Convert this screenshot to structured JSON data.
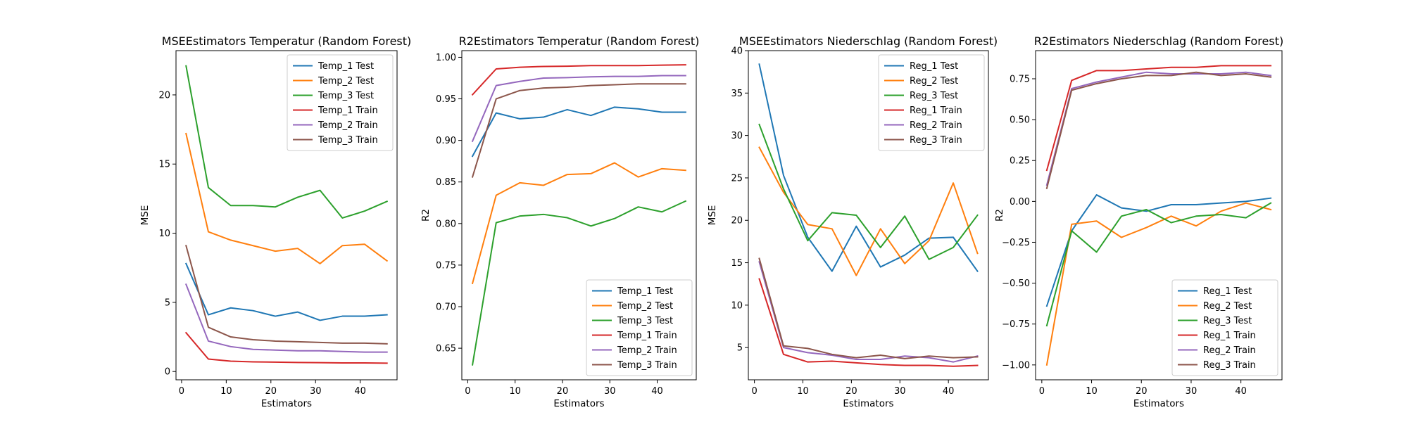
{
  "figure": {
    "background": "#ffffff"
  },
  "colors": {
    "C0": "#1f77b4",
    "C1": "#ff7f0e",
    "C2": "#2ca02c",
    "C3": "#d62728",
    "C4": "#9467bd",
    "C5": "#8c564b"
  },
  "chart_data": [
    {
      "type": "line",
      "title": "MSEEstimators Temperatur (Random Forest)",
      "xlabel": "Estimators",
      "ylabel": "MSE",
      "xlim": [
        -1.25,
        48.25
      ],
      "ylim": [
        -0.6,
        23.2
      ],
      "xticks": [
        0,
        10,
        20,
        30,
        40
      ],
      "yticks": [
        0,
        5,
        10,
        15,
        20
      ],
      "grid": false,
      "legend_loc": "upper right",
      "x": [
        1,
        6,
        11,
        16,
        21,
        26,
        31,
        36,
        41,
        46
      ],
      "series": [
        {
          "name": "Temp_1 Test",
          "color": "#1f77b4",
          "values": [
            7.8,
            4.1,
            4.6,
            4.4,
            4.0,
            4.3,
            3.7,
            4.0,
            4.0,
            4.1
          ]
        },
        {
          "name": "Temp_2 Test",
          "color": "#ff7f0e",
          "values": [
            17.2,
            10.1,
            9.5,
            9.1,
            8.7,
            8.9,
            7.8,
            9.1,
            9.2,
            8.0
          ]
        },
        {
          "name": "Temp_3 Test",
          "color": "#2ca02c",
          "values": [
            22.1,
            13.3,
            12.0,
            12.0,
            11.9,
            12.6,
            13.1,
            11.1,
            11.6,
            12.3
          ]
        },
        {
          "name": "Temp_1 Train",
          "color": "#d62728",
          "values": [
            2.8,
            0.9,
            0.75,
            0.7,
            0.68,
            0.65,
            0.64,
            0.62,
            0.62,
            0.6
          ]
        },
        {
          "name": "Temp_2 Train",
          "color": "#9467bd",
          "values": [
            6.3,
            2.2,
            1.8,
            1.6,
            1.55,
            1.5,
            1.5,
            1.45,
            1.4,
            1.4
          ]
        },
        {
          "name": "Temp_3 Train",
          "color": "#8c564b",
          "values": [
            9.1,
            3.2,
            2.5,
            2.3,
            2.2,
            2.15,
            2.1,
            2.05,
            2.05,
            2.0
          ]
        }
      ]
    },
    {
      "type": "line",
      "title": "R2Estimators Temperatur (Random Forest)",
      "xlabel": "Estimators",
      "ylabel": "R2",
      "xlim": [
        -1.25,
        48.25
      ],
      "ylim": [
        0.612,
        1.008
      ],
      "xticks": [
        0,
        10,
        20,
        30,
        40
      ],
      "yticks": [
        0.65,
        0.7,
        0.75,
        0.8,
        0.85,
        0.9,
        0.95,
        1.0
      ],
      "grid": false,
      "legend_loc": "lower right",
      "x": [
        1,
        6,
        11,
        16,
        21,
        26,
        31,
        36,
        41,
        46
      ],
      "series": [
        {
          "name": "Temp_1 Test",
          "color": "#1f77b4",
          "values": [
            0.881,
            0.933,
            0.926,
            0.928,
            0.937,
            0.93,
            0.94,
            0.938,
            0.934,
            0.934
          ]
        },
        {
          "name": "Temp_2 Test",
          "color": "#ff7f0e",
          "values": [
            0.728,
            0.834,
            0.849,
            0.846,
            0.859,
            0.86,
            0.873,
            0.856,
            0.866,
            0.864
          ]
        },
        {
          "name": "Temp_3 Test",
          "color": "#2ca02c",
          "values": [
            0.63,
            0.801,
            0.809,
            0.811,
            0.807,
            0.797,
            0.806,
            0.82,
            0.814,
            0.827
          ]
        },
        {
          "name": "Temp_1 Train",
          "color": "#d62728",
          "values": [
            0.955,
            0.986,
            0.988,
            0.989,
            0.9893,
            0.99,
            0.99,
            0.99,
            0.9905,
            0.991
          ]
        },
        {
          "name": "Temp_2 Train",
          "color": "#9467bd",
          "values": [
            0.899,
            0.966,
            0.971,
            0.975,
            0.9755,
            0.9765,
            0.977,
            0.977,
            0.978,
            0.978
          ]
        },
        {
          "name": "Temp_3 Train",
          "color": "#8c564b",
          "values": [
            0.856,
            0.95,
            0.96,
            0.963,
            0.964,
            0.966,
            0.967,
            0.968,
            0.968,
            0.968
          ]
        }
      ]
    },
    {
      "type": "line",
      "title": "MSEEstimators Niederschlag (Random Forest)",
      "xlabel": "Estimators",
      "ylabel": "MSE",
      "xlim": [
        -1.25,
        48.25
      ],
      "ylim": [
        1.2,
        40.0
      ],
      "xticks": [
        0,
        10,
        20,
        30,
        40
      ],
      "yticks": [
        5,
        10,
        15,
        20,
        25,
        30,
        35,
        40
      ],
      "grid": false,
      "legend_loc": "upper right",
      "x": [
        1,
        6,
        11,
        16,
        21,
        26,
        31,
        36,
        41,
        46
      ],
      "series": [
        {
          "name": "Reg_1 Test",
          "color": "#1f77b4",
          "values": [
            38.4,
            25.3,
            18.0,
            14.0,
            19.3,
            14.5,
            15.9,
            17.9,
            18.0,
            14.0
          ]
        },
        {
          "name": "Reg_2 Test",
          "color": "#ff7f0e",
          "values": [
            28.6,
            23.3,
            19.5,
            19.0,
            13.5,
            19.0,
            14.9,
            17.6,
            24.4,
            16.1
          ]
        },
        {
          "name": "Reg_3 Test",
          "color": "#2ca02c",
          "values": [
            31.3,
            23.7,
            17.6,
            20.9,
            20.6,
            16.8,
            20.5,
            15.4,
            16.8,
            20.6
          ]
        },
        {
          "name": "Reg_1 Train",
          "color": "#d62728",
          "values": [
            13.1,
            4.2,
            3.3,
            3.4,
            3.2,
            3.0,
            2.9,
            2.9,
            2.8,
            2.9
          ]
        },
        {
          "name": "Reg_2 Train",
          "color": "#9467bd",
          "values": [
            15.1,
            5.0,
            4.4,
            4.1,
            3.6,
            3.6,
            4.0,
            3.8,
            3.3,
            4.0
          ]
        },
        {
          "name": "Reg_3 Train",
          "color": "#8c564b",
          "values": [
            15.5,
            5.2,
            4.9,
            4.2,
            3.8,
            4.1,
            3.7,
            4.0,
            3.8,
            3.9
          ]
        }
      ]
    },
    {
      "type": "line",
      "title": "R2Estimators Niederschlag (Random Forest)",
      "xlabel": "Estimators",
      "ylabel": "R2",
      "xlim": [
        -1.25,
        48.25
      ],
      "ylim": [
        -1.091,
        0.922
      ],
      "xticks": [
        0,
        10,
        20,
        30,
        40
      ],
      "yticks": [
        -1.0,
        -0.75,
        -0.5,
        -0.25,
        0.0,
        0.25,
        0.5,
        0.75
      ],
      "ytick_labels": [
        "−1.00",
        "−0.75",
        "−0.50",
        "−0.25",
        "0.00",
        "0.25",
        "0.50",
        "0.75"
      ],
      "grid": false,
      "legend_loc": "lower right",
      "x": [
        1,
        6,
        11,
        16,
        21,
        26,
        31,
        36,
        41,
        46
      ],
      "series": [
        {
          "name": "Reg_1 Test",
          "color": "#1f77b4",
          "values": [
            -0.64,
            -0.18,
            0.04,
            -0.04,
            -0.06,
            -0.02,
            -0.02,
            -0.01,
            0.0,
            0.02
          ]
        },
        {
          "name": "Reg_2 Test",
          "color": "#ff7f0e",
          "values": [
            -1.0,
            -0.14,
            -0.12,
            -0.22,
            -0.16,
            -0.09,
            -0.15,
            -0.06,
            -0.01,
            -0.05
          ]
        },
        {
          "name": "Reg_3 Test",
          "color": "#2ca02c",
          "values": [
            -0.76,
            -0.18,
            -0.31,
            -0.09,
            -0.05,
            -0.13,
            -0.09,
            -0.08,
            -0.1,
            -0.01
          ]
        },
        {
          "name": "Reg_1 Train",
          "color": "#d62728",
          "values": [
            0.19,
            0.74,
            0.8,
            0.8,
            0.81,
            0.82,
            0.82,
            0.83,
            0.83,
            0.83
          ]
        },
        {
          "name": "Reg_2 Train",
          "color": "#9467bd",
          "values": [
            0.1,
            0.69,
            0.73,
            0.76,
            0.79,
            0.78,
            0.78,
            0.78,
            0.79,
            0.77
          ]
        },
        {
          "name": "Reg_3 Train",
          "color": "#8c564b",
          "values": [
            0.08,
            0.68,
            0.72,
            0.75,
            0.77,
            0.77,
            0.79,
            0.77,
            0.78,
            0.76
          ]
        }
      ]
    }
  ]
}
